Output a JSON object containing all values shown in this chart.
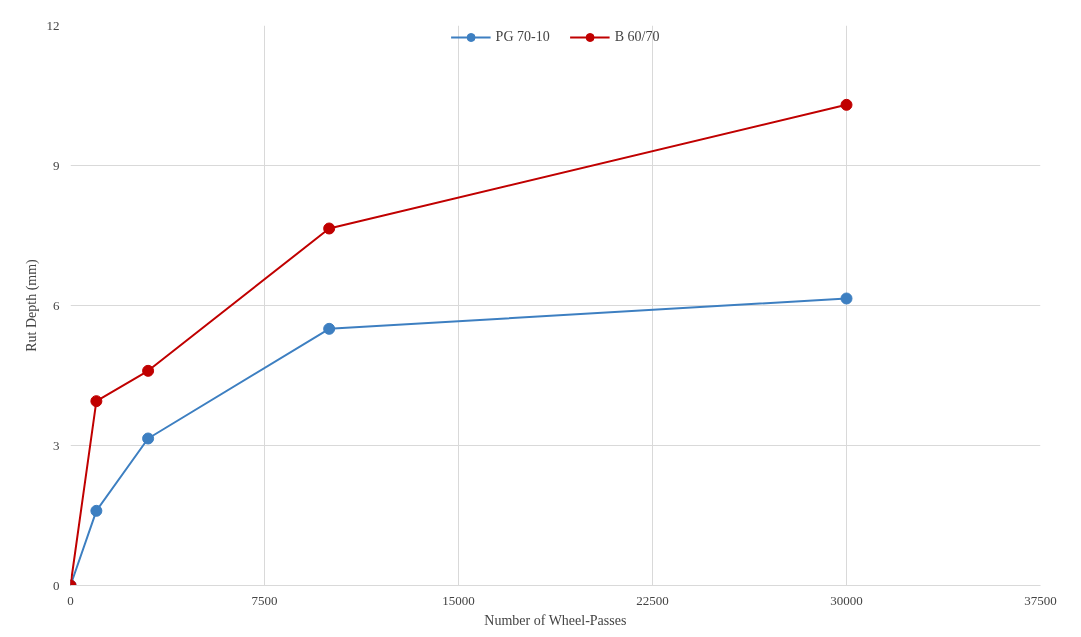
{
  "chart_data": {
    "type": "line",
    "xlabel": "Number of Wheel-Passes",
    "ylabel": "Rut Depth (mm)",
    "x": [
      0,
      1000,
      3000,
      10000,
      30000
    ],
    "series": [
      {
        "name": "PG 70-10",
        "color": "#3d7fc1",
        "values": [
          0,
          1.6,
          3.15,
          5.5,
          6.15
        ]
      },
      {
        "name": "B 60/70",
        "color": "#c00000",
        "values": [
          0,
          3.95,
          4.6,
          7.65,
          10.3
        ]
      }
    ],
    "xlim": [
      0,
      37500
    ],
    "xticks": [
      0,
      7500,
      15000,
      22500,
      30000,
      37500
    ],
    "ylim": [
      0,
      12
    ],
    "yticks": [
      0,
      3,
      6,
      9,
      12
    ],
    "grid": true,
    "legend": "top",
    "marker": "circle",
    "line_style": "solid"
  }
}
